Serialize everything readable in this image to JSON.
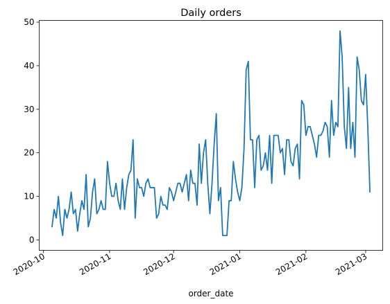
{
  "chart_data": {
    "type": "line",
    "title": "Daily orders",
    "xlabel": "order_date",
    "ylabel": "",
    "x_start": "2020-10-05",
    "x_end": "2021-03-03",
    "xlim": [
      "2020-09-29",
      "2021-03-09"
    ],
    "ylim": [
      -2.4,
      50.4
    ],
    "y_ticks": [
      0,
      10,
      20,
      30,
      40,
      50
    ],
    "x_ticks": [
      {
        "date": "2020-10-01",
        "label": "2020-10"
      },
      {
        "date": "2020-11-01",
        "label": "2020-11"
      },
      {
        "date": "2020-12-01",
        "label": "2020-12"
      },
      {
        "date": "2021-01-01",
        "label": "2021-01"
      },
      {
        "date": "2021-02-01",
        "label": "2021-02"
      },
      {
        "date": "2021-03-01",
        "label": "2021-03"
      }
    ],
    "grid": false,
    "series": [
      {
        "color": "#1f77b4",
        "values": [
          3,
          7,
          5,
          10,
          4,
          1,
          7,
          5,
          7,
          11,
          6,
          7,
          2,
          6,
          9,
          7,
          15,
          3,
          5,
          11,
          14,
          6,
          7,
          9,
          7,
          7,
          18,
          13,
          10,
          10,
          13,
          9,
          7,
          14,
          7,
          12,
          15,
          16,
          23,
          5,
          14,
          12,
          12,
          10,
          13,
          14,
          12,
          12,
          12,
          5,
          6,
          10,
          8,
          8,
          7,
          12,
          11,
          9,
          11,
          13,
          13,
          11,
          13,
          15,
          9,
          16,
          13,
          13,
          8,
          22,
          13,
          20,
          23,
          13,
          6,
          13,
          22,
          29,
          9,
          12,
          1,
          1,
          1,
          9,
          9,
          18,
          14,
          11,
          9,
          12,
          21,
          39,
          41,
          23,
          23,
          12,
          23,
          24,
          16,
          17,
          20,
          16,
          24,
          13,
          24,
          24,
          24,
          20,
          21,
          15,
          23,
          23,
          18,
          17,
          21,
          22,
          14,
          32,
          31,
          24,
          26,
          26,
          24,
          22,
          19,
          24,
          24,
          25,
          27,
          26,
          19,
          32,
          24,
          27,
          26,
          48,
          42,
          26,
          21,
          35,
          21,
          27,
          19,
          42,
          39,
          32,
          31,
          38,
          26,
          11
        ]
      }
    ]
  }
}
